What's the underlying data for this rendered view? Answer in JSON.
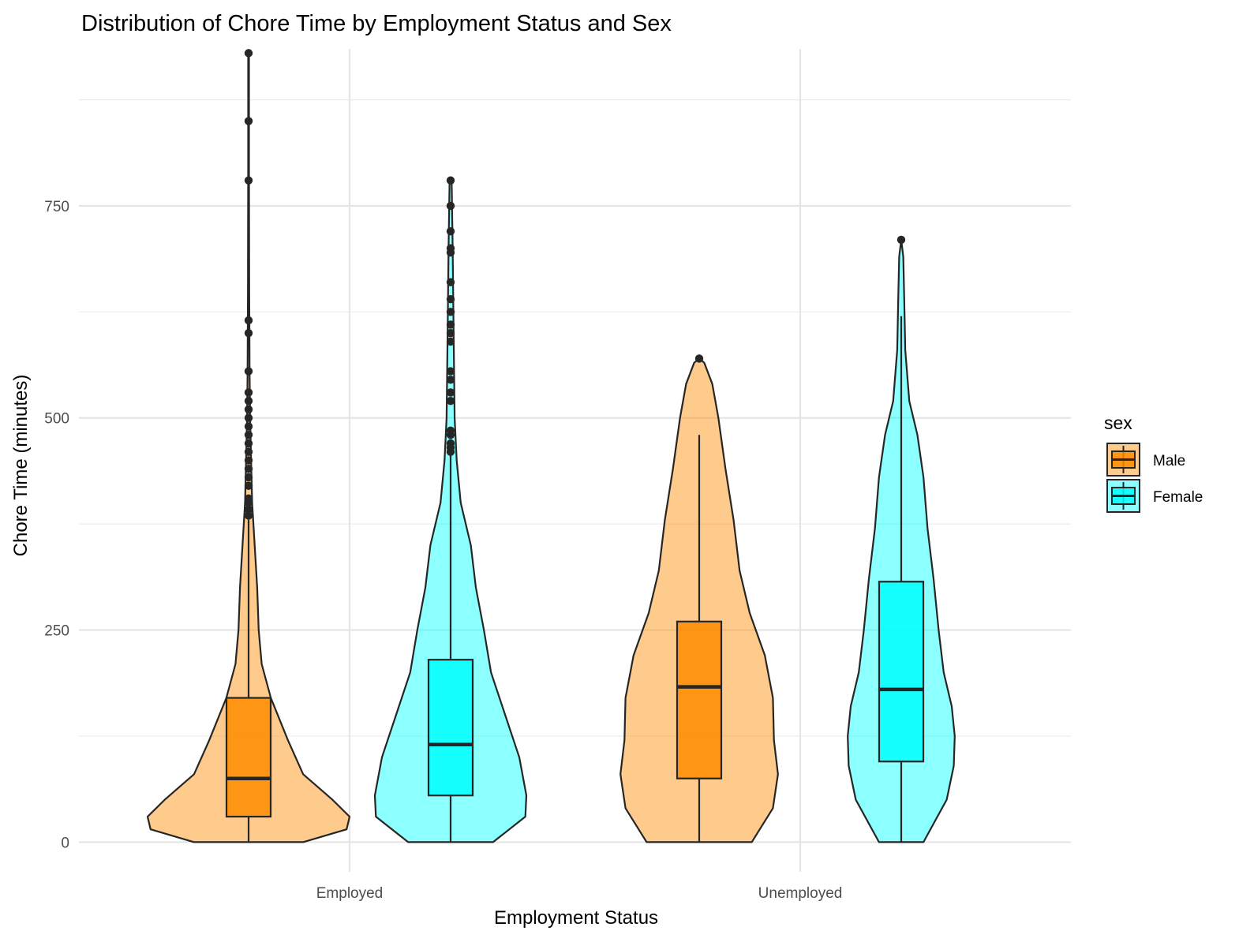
{
  "chart_data": {
    "type": "violin",
    "title": "Distribution of Chore Time by Employment Status and Sex",
    "xlabel": "Employment Status",
    "ylabel": "Chore Time (minutes)",
    "categories": [
      "Employed",
      "Unemployed"
    ],
    "ylim": [
      -35,
      935
    ],
    "yticks": [
      0,
      250,
      500,
      750
    ],
    "grid": true,
    "legend": {
      "title": "sex",
      "position": "right"
    },
    "series": [
      {
        "name": "Male",
        "color": "#ff8c00",
        "groups": [
          {
            "category": "Employed",
            "box": {
              "q1": 30,
              "median": 75,
              "q3": 170,
              "whisker_low": 0,
              "whisker_high": 380
            },
            "outliers": [
              385,
              392,
              400,
              405,
              420,
              430,
              440,
              450,
              460,
              470,
              480,
              490,
              500,
              510,
              520,
              530,
              555,
              600,
              615,
              780,
              850,
              930
            ],
            "density": [
              [
                0,
                0.54
              ],
              [
                15,
                0.97
              ],
              [
                30,
                1.0
              ],
              [
                50,
                0.83
              ],
              [
                80,
                0.54
              ],
              [
                120,
                0.39
              ],
              [
                170,
                0.22
              ],
              [
                210,
                0.13
              ],
              [
                250,
                0.1
              ],
              [
                300,
                0.085
              ],
              [
                350,
                0.06
              ],
              [
                400,
                0.035
              ],
              [
                450,
                0.025
              ],
              [
                500,
                0.015
              ],
              [
                550,
                0.01
              ],
              [
                650,
                0.006
              ],
              [
                800,
                0.004
              ],
              [
                930,
                0.004
              ]
            ]
          },
          {
            "category": "Unemployed",
            "box": {
              "q1": 75,
              "median": 183,
              "q3": 260,
              "whisker_low": 0,
              "whisker_high": 480
            },
            "outliers": [
              570
            ],
            "density": [
              [
                0,
                0.52
              ],
              [
                40,
                0.73
              ],
              [
                80,
                0.78
              ],
              [
                120,
                0.74
              ],
              [
                170,
                0.73
              ],
              [
                220,
                0.65
              ],
              [
                270,
                0.5
              ],
              [
                320,
                0.4
              ],
              [
                380,
                0.34
              ],
              [
                440,
                0.26
              ],
              [
                500,
                0.19
              ],
              [
                540,
                0.13
              ],
              [
                565,
                0.05
              ],
              [
                570,
                0.0
              ]
            ]
          }
        ]
      },
      {
        "name": "Female",
        "color": "#00ffff",
        "groups": [
          {
            "category": "Employed",
            "box": {
              "q1": 55,
              "median": 115,
              "q3": 215,
              "whisker_low": 0,
              "whisker_high": 460
            },
            "outliers": [
              460,
              465,
              470,
              480,
              485,
              520,
              530,
              545,
              555,
              590,
              600,
              610,
              625,
              640,
              660,
              695,
              700,
              720,
              750,
              780
            ],
            "density": [
              [
                0,
                0.42
              ],
              [
                30,
                0.74
              ],
              [
                55,
                0.75
              ],
              [
                100,
                0.68
              ],
              [
                150,
                0.54
              ],
              [
                200,
                0.4
              ],
              [
                250,
                0.33
              ],
              [
                300,
                0.25
              ],
              [
                350,
                0.2
              ],
              [
                400,
                0.1
              ],
              [
                450,
                0.06
              ],
              [
                500,
                0.04
              ],
              [
                600,
                0.03
              ],
              [
                700,
                0.02
              ],
              [
                780,
                0.01
              ]
            ]
          },
          {
            "category": "Unemployed",
            "box": {
              "q1": 95,
              "median": 180,
              "q3": 307,
              "whisker_low": 0,
              "whisker_high": 620
            },
            "outliers": [
              710
            ],
            "density": [
              [
                0,
                0.22
              ],
              [
                50,
                0.45
              ],
              [
                90,
                0.52
              ],
              [
                125,
                0.53
              ],
              [
                160,
                0.5
              ],
              [
                200,
                0.42
              ],
              [
                250,
                0.37
              ],
              [
                310,
                0.32
              ],
              [
                370,
                0.26
              ],
              [
                430,
                0.22
              ],
              [
                480,
                0.16
              ],
              [
                520,
                0.08
              ],
              [
                580,
                0.04
              ],
              [
                640,
                0.03
              ],
              [
                690,
                0.02
              ],
              [
                710,
                0.0
              ]
            ]
          }
        ]
      }
    ]
  }
}
